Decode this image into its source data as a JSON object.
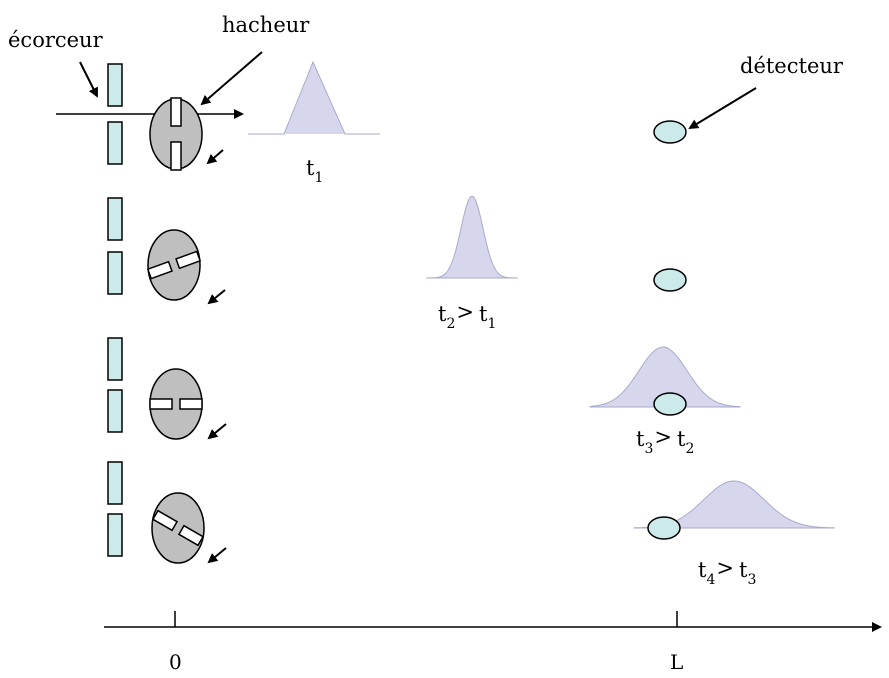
{
  "labels": {
    "skimmer": "écorceur",
    "chopper": "hacheur",
    "detector": "détecteur"
  },
  "time_labels": [
    {
      "t": "t",
      "sub": "1",
      "rel": "",
      "t2": "",
      "sub2": ""
    },
    {
      "t": "t",
      "sub": "2",
      "rel": ">",
      "t2": "t",
      "sub2": "1"
    },
    {
      "t": "t",
      "sub": "3",
      "rel": ">",
      "t2": "t",
      "sub2": "2"
    },
    {
      "t": "t",
      "sub": "4",
      "rel": ">",
      "t2": "t",
      "sub2": "3"
    }
  ],
  "axis": {
    "tick_labels": [
      "0",
      "L"
    ]
  },
  "colors": {
    "skimmer_fill": "#cdeaea",
    "chopper_fill": "#bfbfbf",
    "detector_fill": "#cdeaea",
    "pulse_fill": "#d6d6ec",
    "stroke": "#000000"
  },
  "icons": {
    "arrow": "arrow-icon"
  }
}
